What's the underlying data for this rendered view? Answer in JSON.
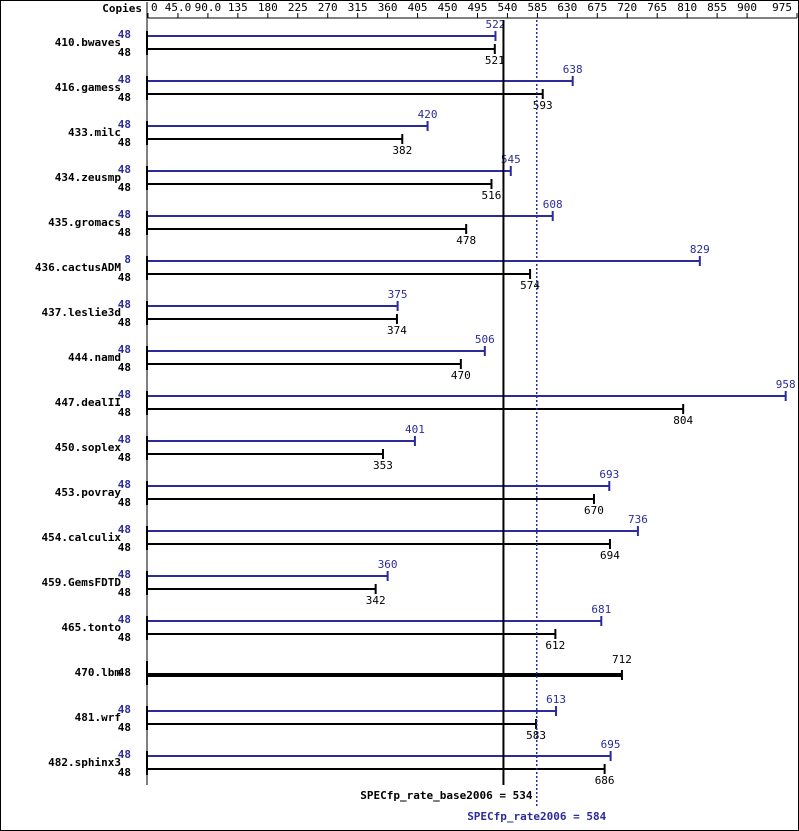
{
  "chart_data": {
    "type": "spec-bar",
    "axis_title": "Copies",
    "xlim": [
      0,
      975
    ],
    "xticks": [
      0,
      {
        "value": 45,
        "label": "45.0"
      },
      {
        "value": 90,
        "label": "90.0"
      },
      135,
      180,
      225,
      270,
      315,
      360,
      405,
      450,
      495,
      540,
      585,
      630,
      675,
      720,
      765,
      810,
      855,
      900,
      975
    ],
    "categories": [
      "410.bwaves",
      "416.gamess",
      "433.milc",
      "434.zeusmp",
      "435.gromacs",
      "436.cactusADM",
      "437.leslie3d",
      "444.namd",
      "447.dealII",
      "450.soplex",
      "453.povray",
      "454.calculix",
      "459.GemsFDTD",
      "465.tonto",
      "470.lbm",
      "481.wrf",
      "482.sphinx3"
    ],
    "series": [
      {
        "color": "#2b2b9c",
        "copies": [
          48,
          48,
          48,
          48,
          48,
          8,
          48,
          48,
          48,
          48,
          48,
          48,
          48,
          48,
          null,
          48,
          48
        ],
        "values": [
          522,
          638,
          420,
          545,
          608,
          829,
          375,
          506,
          958,
          401,
          693,
          736,
          360,
          681,
          null,
          613,
          695
        ]
      },
      {
        "color": "#000000",
        "copies": [
          48,
          48,
          48,
          48,
          48,
          48,
          48,
          48,
          48,
          48,
          48,
          48,
          48,
          48,
          48,
          48,
          48
        ],
        "values": [
          521,
          593,
          382,
          516,
          478,
          574,
          374,
          470,
          804,
          353,
          670,
          694,
          342,
          612,
          712,
          583,
          686
        ]
      }
    ],
    "reference_lines": [
      {
        "label": "SPECfp_rate_base2006 = 534",
        "value": 534,
        "color": "#000000",
        "style": "solid"
      },
      {
        "label": "SPECfp_rate2006 = 584",
        "value": 584,
        "color": "#2b2b9c",
        "style": "dotted"
      }
    ]
  }
}
